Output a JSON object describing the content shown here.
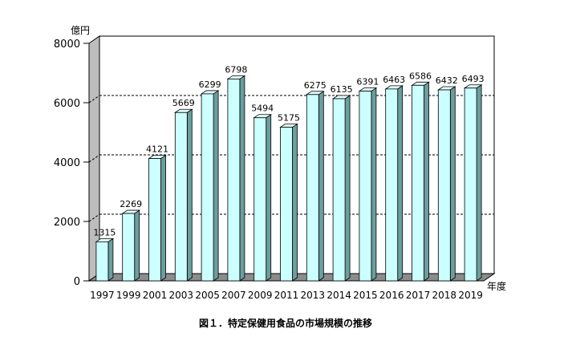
{
  "chart_data": {
    "type": "bar",
    "title": "",
    "caption": "図１．特定保健用食品の市場規模の推移",
    "ylabel": "億円",
    "xlabel": "年度",
    "ylim": [
      0,
      8000
    ],
    "yticks": [
      "0",
      "2000",
      "4000",
      "6000",
      "8000"
    ],
    "grid": true,
    "categories": [
      "1997",
      "1999",
      "2001",
      "2003",
      "2005",
      "2007",
      "2009",
      "2011",
      "2013",
      "2014",
      "2015",
      "2016",
      "2017",
      "2018",
      "2019"
    ],
    "values": [
      1315,
      2269,
      4121,
      5669,
      6299,
      6798,
      5494,
      5175,
      6275,
      6135,
      6391,
      6463,
      6586,
      6432,
      6493
    ],
    "colors": {
      "bar_front": "#ccffff",
      "bar_side": "#6b9e9e",
      "bar_top": "#e6ffff",
      "wall": "#bdbdbd",
      "floor": "#8c8c8c"
    }
  }
}
